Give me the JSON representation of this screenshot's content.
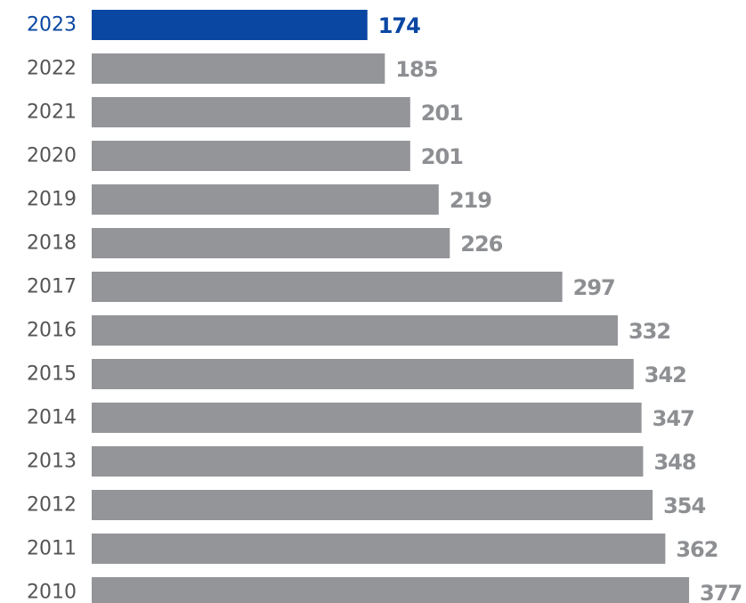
{
  "chart_data": {
    "type": "bar",
    "orientation": "horizontal",
    "categories": [
      "2023",
      "2022",
      "2021",
      "2020",
      "2019",
      "2018",
      "2017",
      "2016",
      "2015",
      "2014",
      "2013",
      "2012",
      "2011",
      "2010"
    ],
    "values": [
      174,
      185,
      201,
      201,
      219,
      226,
      297,
      332,
      342,
      347,
      348,
      354,
      362,
      377
    ],
    "highlight_category": "2023",
    "colors": {
      "bar": "#939598",
      "highlight": "#0a47a3",
      "year_label": "#555555",
      "value_label": "#8d8f92"
    },
    "grid": false,
    "legend": "none"
  }
}
